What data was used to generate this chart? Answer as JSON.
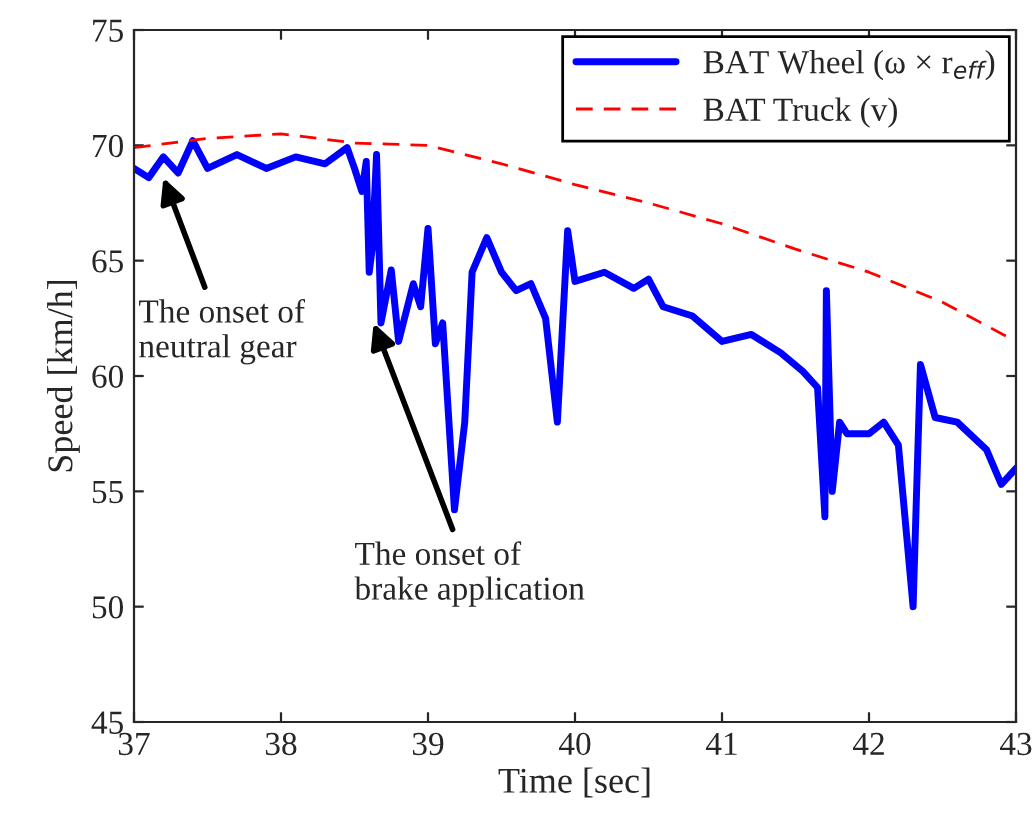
{
  "chart_data": {
    "type": "line",
    "xlabel": "Time [sec]",
    "ylabel": "Speed [km/h]",
    "xlim": [
      37,
      43
    ],
    "xticks": [
      37,
      38,
      39,
      40,
      41,
      42,
      43
    ],
    "ylim": [
      45,
      75
    ],
    "yticks": [
      45,
      50,
      55,
      60,
      65,
      70,
      75
    ],
    "grid": false,
    "legend": "top right",
    "marker": "none",
    "series": [
      {
        "name": "BAT Wheel (ω × r$_{eff}$)",
        "color": "#0000ff",
        "line_style": "solid",
        "x": [
          37.0,
          37.1,
          37.2,
          37.3,
          37.4,
          37.5,
          37.7,
          37.9,
          38.1,
          38.3,
          38.45,
          38.5,
          38.55,
          38.58,
          38.6,
          38.62,
          38.65,
          38.68,
          38.75,
          38.8,
          38.9,
          38.95,
          39.0,
          39.05,
          39.1,
          39.18,
          39.25,
          39.3,
          39.4,
          39.5,
          39.6,
          39.7,
          39.8,
          39.88,
          39.95,
          40.0,
          40.2,
          40.4,
          40.5,
          40.6,
          40.8,
          41.0,
          41.2,
          41.4,
          41.55,
          41.65,
          41.7,
          41.71,
          41.75,
          41.8,
          41.85,
          42.0,
          42.1,
          42.2,
          42.3,
          42.35,
          42.45,
          42.6,
          42.8,
          42.9,
          43.0
        ],
        "values": [
          69.0,
          68.6,
          69.5,
          68.8,
          70.2,
          69.0,
          69.6,
          69.0,
          69.5,
          69.2,
          69.9,
          69.0,
          68.0,
          69.3,
          64.5,
          65.5,
          69.6,
          62.3,
          64.6,
          61.5,
          64.0,
          63.0,
          66.4,
          61.4,
          62.3,
          54.2,
          58.0,
          64.5,
          66.0,
          64.5,
          63.7,
          64.0,
          62.5,
          58.0,
          66.3,
          64.1,
          64.5,
          63.8,
          64.2,
          63.0,
          62.6,
          61.5,
          61.8,
          61.0,
          60.2,
          59.5,
          53.9,
          63.7,
          55.0,
          58.0,
          57.5,
          57.5,
          58.0,
          57.0,
          50.0,
          60.5,
          58.2,
          58.0,
          56.8,
          55.3,
          56.0
        ]
      },
      {
        "name": "BAT Truck (v)",
        "color": "#ff0000",
        "line_style": "dashed",
        "x": [
          37.0,
          37.5,
          38.0,
          38.5,
          39.0,
          39.5,
          40.0,
          40.5,
          41.0,
          41.5,
          42.0,
          42.5,
          43.0
        ],
        "values": [
          69.9,
          70.3,
          70.5,
          70.1,
          70.0,
          69.2,
          68.3,
          67.5,
          66.6,
          65.5,
          64.5,
          63.2,
          61.5
        ]
      }
    ],
    "annotations": [
      {
        "text": "The onset of\nneutral gear",
        "x": 37.2,
        "y": 68.6
      },
      {
        "text": "The onset of\nbrake application",
        "x": 38.63,
        "y": 62.3
      }
    ]
  }
}
